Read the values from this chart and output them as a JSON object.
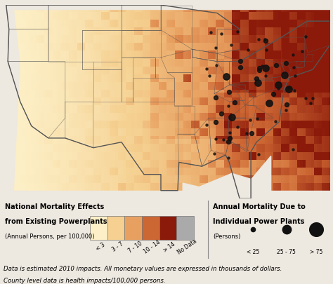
{
  "colorbar_colors": [
    "#fdf0c8",
    "#f5d090",
    "#e8a060",
    "#cc6633",
    "#8b1a0a",
    "#aaaaaa"
  ],
  "colorbar_labels": [
    "< 3",
    "3 - 7",
    "7 - 10",
    "10 - 14",
    "> 14",
    "No Data"
  ],
  "legend_title_left_line1": "National Mortality Effects",
  "legend_title_left_line2": "from Existing Powerplants",
  "legend_title_left_line3": "(Annual Persons, per 100,000)",
  "legend_title_right_line1": "Annual Mortality Due to",
  "legend_title_right_line2": "Individual Power Plants",
  "legend_title_right_line3": "(Persons)",
  "legend_right_labels": [
    "< 25",
    "25 - 75",
    "> 75"
  ],
  "footnote1": "Data is estimated 2010 impacts. All monetary values are expressed in thousands of dollars.",
  "footnote2": "County level data is health impacts/100,000 persons.",
  "bg_color": "#ede8e0",
  "map_bg": "#fdf0c8",
  "border_color": "#555555",
  "dot_color": "#111111",
  "colormap_stops": [
    "#fdf0c8",
    "#f5d090",
    "#e8a060",
    "#cc6633",
    "#8b1a0a"
  ],
  "no_data_color": "#aaaaaa",
  "west_threshold": 0.38,
  "mid_threshold": 0.62
}
